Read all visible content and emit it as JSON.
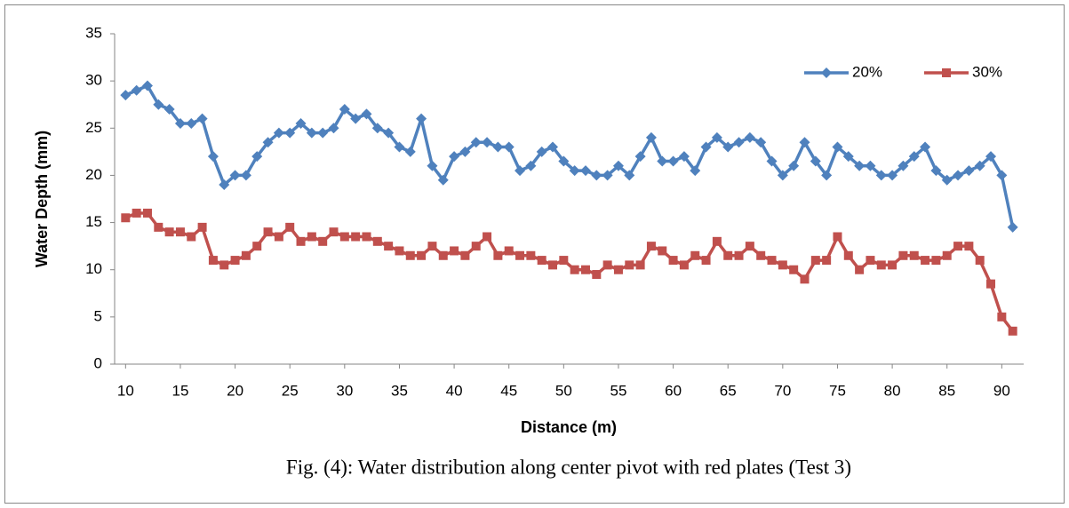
{
  "chart_data": {
    "type": "line",
    "caption": "Fig. (4): Water distribution along center pivot with red plates (Test 3)",
    "xlabel": "Distance (m)",
    "ylabel": "Water Depth (mm)",
    "x": [
      10,
      11,
      12,
      13,
      14,
      15,
      16,
      17,
      18,
      19,
      20,
      21,
      22,
      23,
      24,
      25,
      26,
      27,
      28,
      29,
      30,
      31,
      32,
      33,
      34,
      35,
      36,
      37,
      38,
      39,
      40,
      41,
      42,
      43,
      44,
      45,
      46,
      47,
      48,
      49,
      50,
      51,
      52,
      53,
      54,
      55,
      56,
      57,
      58,
      59,
      60,
      61,
      62,
      63,
      64,
      65,
      66,
      67,
      68,
      69,
      70,
      71,
      72,
      73,
      74,
      75,
      76,
      77,
      78,
      79,
      80,
      81,
      82,
      83,
      84,
      85,
      86,
      87,
      88,
      89,
      90,
      91
    ],
    "series": [
      {
        "name": "20%",
        "color": "#4f81bd",
        "marker": "diamond",
        "values": [
          28.5,
          29,
          29.5,
          27.5,
          27,
          25.5,
          25.5,
          26,
          22,
          19,
          20,
          20,
          22,
          23.5,
          24.5,
          24.5,
          25.5,
          24.5,
          24.5,
          25,
          27,
          26,
          26.5,
          25,
          24.5,
          23,
          22.5,
          26,
          21,
          19.5,
          22,
          22.5,
          23.5,
          23.5,
          23,
          23,
          20.5,
          21,
          22.5,
          23,
          21.5,
          20.5,
          20.5,
          20,
          20,
          21,
          20,
          22,
          24,
          21.5,
          21.5,
          22,
          20.5,
          23,
          24,
          23,
          23.5,
          24,
          23.5,
          21.5,
          20,
          21,
          23.5,
          21.5,
          20,
          23,
          22,
          21,
          21,
          20,
          20,
          21,
          22,
          23,
          20.5,
          19.5,
          20,
          20.5,
          21,
          22,
          20,
          14.5
        ]
      },
      {
        "name": "30%",
        "color": "#c0504d",
        "marker": "square",
        "values": [
          15.5,
          16,
          16,
          14.5,
          14,
          14,
          13.5,
          14.5,
          11,
          10.5,
          11,
          11.5,
          12.5,
          14,
          13.5,
          14.5,
          13,
          13.5,
          13,
          14,
          13.5,
          13.5,
          13.5,
          13,
          12.5,
          12,
          11.5,
          11.5,
          12.5,
          11.5,
          12,
          11.5,
          12.5,
          13.5,
          11.5,
          12,
          11.5,
          11.5,
          11,
          10.5,
          11,
          10,
          10,
          9.5,
          10.5,
          10,
          10.5,
          10.5,
          12.5,
          12,
          11,
          10.5,
          11.5,
          11,
          13,
          11.5,
          11.5,
          12.5,
          11.5,
          11,
          10.5,
          10,
          9,
          11,
          11,
          13.5,
          11.5,
          10,
          11,
          10.5,
          10.5,
          11.5,
          11.5,
          11,
          11,
          11.5,
          12.5,
          12.5,
          11,
          8.5,
          5,
          3.5
        ]
      }
    ],
    "xlim": [
      9,
      92
    ],
    "xticks": [
      10,
      15,
      20,
      25,
      30,
      35,
      40,
      45,
      50,
      55,
      60,
      65,
      70,
      75,
      80,
      85,
      90
    ],
    "ylim": [
      0,
      35
    ],
    "yticks": [
      0,
      5,
      10,
      15,
      20,
      25,
      30,
      35
    ],
    "grid": false,
    "legend": "top-right"
  }
}
